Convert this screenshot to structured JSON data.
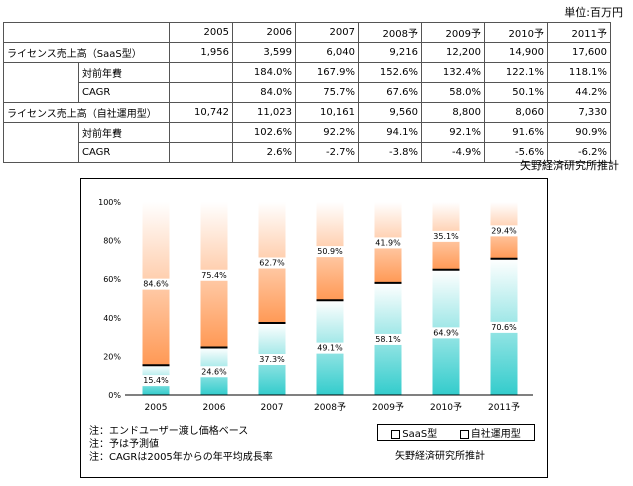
{
  "unit_label": "単位:百万円",
  "table": {
    "years": [
      "2005",
      "2006",
      "2007",
      "2008予",
      "2009予",
      "2010予",
      "2011予"
    ],
    "groups": [
      {
        "label": "ライセンス売上高（SaaS型）",
        "values": [
          "1,956",
          "3,599",
          "6,040",
          "9,216",
          "12,200",
          "14,900",
          "17,600"
        ],
        "rows": [
          {
            "label": "対前年費",
            "values": [
              "",
              "184.0%",
              "167.9%",
              "152.6%",
              "132.4%",
              "122.1%",
              "118.1%"
            ]
          },
          {
            "label": "CAGR",
            "values": [
              "",
              "84.0%",
              "75.7%",
              "67.6%",
              "58.0%",
              "50.1%",
              "44.2%"
            ]
          }
        ]
      },
      {
        "label": "ライセンス売上高（自社運用型）",
        "values": [
          "10,742",
          "11,023",
          "10,161",
          "9,560",
          "8,800",
          "8,060",
          "7,330"
        ],
        "rows": [
          {
            "label": "対前年費",
            "values": [
              "",
              "102.6%",
              "92.2%",
              "94.1%",
              "92.1%",
              "91.6%",
              "90.9%"
            ]
          },
          {
            "label": "CAGR",
            "values": [
              "",
              "2.6%",
              "-2.7%",
              "-3.8%",
              "-4.9%",
              "-5.6%",
              "-6.2%"
            ]
          }
        ]
      }
    ]
  },
  "source_top": "矢野経済研究所推計",
  "chart_data": {
    "type": "bar",
    "stacked": true,
    "percent_stacked": true,
    "categories": [
      "2005",
      "2006",
      "2007",
      "2008予",
      "2009予",
      "2010予",
      "2011予"
    ],
    "series": [
      {
        "name": "SaaS型",
        "values": [
          15.4,
          24.6,
          37.3,
          49.1,
          58.1,
          64.9,
          70.6
        ],
        "labels": [
          "15.4%",
          "24.6%",
          "37.3%",
          "49.1%",
          "58.1%",
          "64.9%",
          "70.6%"
        ],
        "color_top": "#ffffff",
        "color_bottom": "#33cccc"
      },
      {
        "name": "自社運用型",
        "values": [
          84.6,
          75.4,
          62.7,
          50.9,
          41.9,
          35.1,
          29.4
        ],
        "labels": [
          "84.6%",
          "75.4%",
          "62.7%",
          "50.9%",
          "41.9%",
          "35.1%",
          "29.4%"
        ],
        "color_top": "#ffffff",
        "color_bottom": "#ff9955"
      }
    ],
    "yticks": [
      "0%",
      "20%",
      "40%",
      "60%",
      "80%",
      "100%"
    ],
    "ylim": [
      0,
      100
    ],
    "grid": false,
    "legend_position": "bottom-right"
  },
  "notes": [
    "注：エンドユーザー渡し価格ベース",
    "注：予は予測値",
    "注：CAGRは2005年からの年平均成長率"
  ],
  "source_chart": "矢野経済研究所推計"
}
